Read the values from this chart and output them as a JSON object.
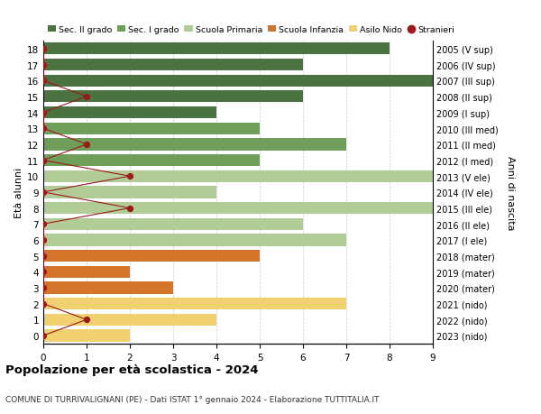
{
  "ages": [
    18,
    17,
    16,
    15,
    14,
    13,
    12,
    11,
    10,
    9,
    8,
    7,
    6,
    5,
    4,
    3,
    2,
    1,
    0
  ],
  "years": [
    "2005 (V sup)",
    "2006 (IV sup)",
    "2007 (III sup)",
    "2008 (II sup)",
    "2009 (I sup)",
    "2010 (III med)",
    "2011 (II med)",
    "2012 (I med)",
    "2013 (V ele)",
    "2014 (IV ele)",
    "2015 (III ele)",
    "2016 (II ele)",
    "2017 (I ele)",
    "2018 (mater)",
    "2019 (mater)",
    "2020 (mater)",
    "2021 (nido)",
    "2022 (nido)",
    "2023 (nido)"
  ],
  "bar_values": [
    8,
    6,
    9,
    6,
    4,
    5,
    7,
    5,
    9,
    4,
    9,
    6,
    7,
    5,
    2,
    3,
    7,
    4,
    2
  ],
  "bar_colors": [
    "#4a7340",
    "#4a7340",
    "#4a7340",
    "#4a7340",
    "#4a7340",
    "#6e9e5a",
    "#6e9e5a",
    "#6e9e5a",
    "#b2cc98",
    "#b2cc98",
    "#b2cc98",
    "#b2cc98",
    "#b2cc98",
    "#d4742a",
    "#d4742a",
    "#d4742a",
    "#f0d070",
    "#f0d070",
    "#f0d070"
  ],
  "stranieri_values": [
    0,
    0,
    0,
    1,
    0,
    0,
    1,
    0,
    2,
    0,
    2,
    0,
    0,
    0,
    0,
    0,
    0,
    1,
    0
  ],
  "stranieri_color": "#9b1a1a",
  "legend_labels": [
    "Sec. II grado",
    "Sec. I grado",
    "Scuola Primaria",
    "Scuola Infanzia",
    "Asilo Nido",
    "Stranieri"
  ],
  "legend_colors": [
    "#4a7340",
    "#6e9e5a",
    "#b2cc98",
    "#d4742a",
    "#f0d070",
    "#9b1a1a"
  ],
  "ylabel_left": "Età alunni",
  "ylabel_right": "Anni di nascita",
  "title": "Popolazione per età scolastica - 2024",
  "subtitle": "COMUNE DI TURRIVALIGNANI (PE) - Dati ISTAT 1° gennaio 2024 - Elaborazione TUTTITALIA.IT",
  "xlim": [
    0,
    9
  ],
  "xticks": [
    0,
    1,
    2,
    3,
    4,
    5,
    6,
    7,
    8,
    9
  ],
  "bg_color": "#ffffff",
  "grid_color": "#cccccc"
}
